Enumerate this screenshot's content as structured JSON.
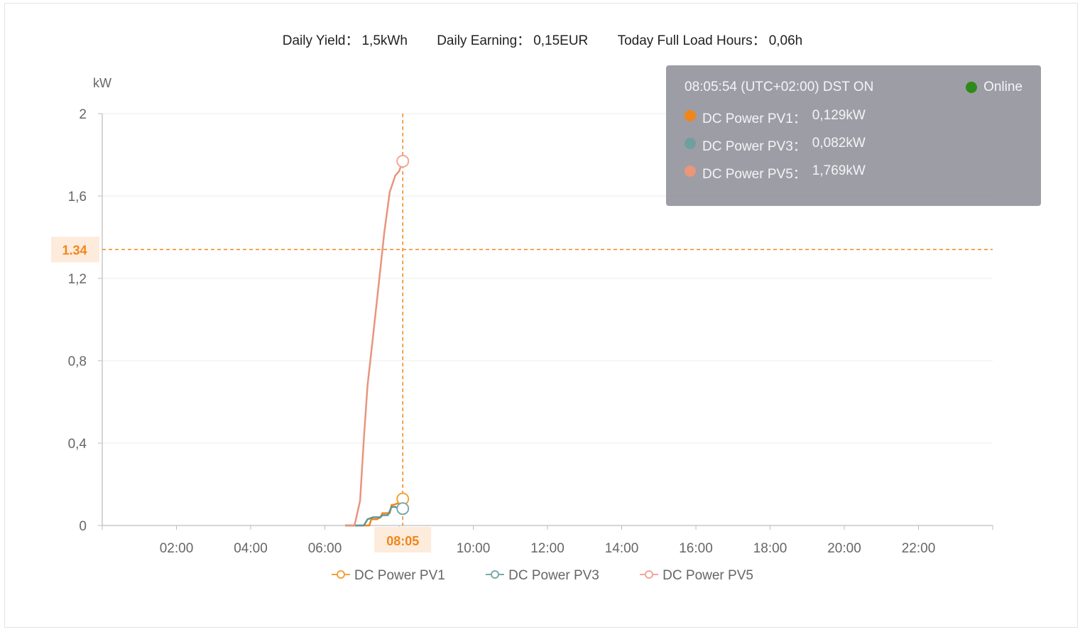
{
  "stats": [
    {
      "label": "Daily Yield：",
      "value": "1,5kWh"
    },
    {
      "label": "Daily Earning：",
      "value": "0,15EUR"
    },
    {
      "label": "Today Full Load Hours：",
      "value": "0,06h"
    }
  ],
  "tooltip": {
    "time": "08:05:54 (UTC+02:00) DST ON",
    "status": "Online",
    "status_color": "#2f8a1c",
    "rows": [
      {
        "label": "DC Power PV1：",
        "value": "0,129kW",
        "color": "#f0861a"
      },
      {
        "label": "DC Power PV3：",
        "value": "0,082kW",
        "color": "#6f9fa0"
      },
      {
        "label": "DC Power PV5：",
        "value": "1,769kW",
        "color": "#e9967a"
      }
    ]
  },
  "legend": [
    {
      "label": "DC Power PV1",
      "color": "#f0a23e"
    },
    {
      "label": "DC Power PV3",
      "color": "#7ea8ab"
    },
    {
      "label": "DC Power PV5",
      "color": "#f0a796"
    }
  ],
  "chart_data": {
    "type": "line",
    "ylabel": "kW",
    "ylim": [
      0,
      2
    ],
    "xlim": [
      0,
      24
    ],
    "y_ticks": [
      "0",
      "0,4",
      "0,8",
      "1,2",
      "1,6",
      "2"
    ],
    "x_ticks": [
      "02:00",
      "04:00",
      "06:00",
      "08:00",
      "10:00",
      "12:00",
      "14:00",
      "16:00",
      "18:00",
      "20:00",
      "22:00"
    ],
    "grid": true,
    "cursor": {
      "x_label": "08:05",
      "x": 8.1,
      "y_label": "1.34",
      "y": 1.34,
      "color": "#f0861a"
    },
    "series": [
      {
        "name": "DC Power PV1",
        "color": "#f0861a",
        "x": [
          6.55,
          7.1,
          7.2,
          7.25,
          7.4,
          7.5,
          7.55,
          7.75,
          7.8,
          7.85,
          8.0,
          8.1
        ],
        "y": [
          0,
          0,
          0,
          0.03,
          0.03,
          0.04,
          0.06,
          0.06,
          0.1,
          0.1,
          0.11,
          0.129
        ]
      },
      {
        "name": "DC Power PV3",
        "color": "#5f9496",
        "x": [
          6.55,
          7.05,
          7.15,
          7.3,
          7.4,
          7.5,
          7.55,
          7.7,
          7.8,
          7.9,
          8.0,
          8.1
        ],
        "y": [
          0,
          0,
          0.03,
          0.04,
          0.04,
          0.04,
          0.05,
          0.05,
          0.09,
          0.09,
          0.08,
          0.082
        ]
      },
      {
        "name": "DC Power PV5",
        "color": "#e8957c",
        "x": [
          6.55,
          6.8,
          6.95,
          7.05,
          7.15,
          7.3,
          7.45,
          7.6,
          7.75,
          7.9,
          8.0,
          8.1
        ],
        "y": [
          0,
          0,
          0.12,
          0.42,
          0.68,
          0.92,
          1.17,
          1.42,
          1.62,
          1.7,
          1.72,
          1.769
        ]
      }
    ]
  }
}
